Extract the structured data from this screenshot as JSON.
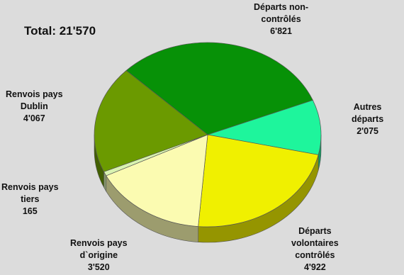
{
  "chart_data": {
    "type": "pie",
    "style": "3d",
    "title": "Total: 21'570",
    "slices": [
      {
        "name": "Autres\ndéparts",
        "value_label": "2'075",
        "value": 2075,
        "color": "#1ef59c"
      },
      {
        "name": "Départs\nvolontaires\ncontrôlés",
        "value_label": "4'922",
        "value": 4922,
        "color": "#f0f000"
      },
      {
        "name": "Renvois pays\nd`origine",
        "value_label": "3'520",
        "value": 3520,
        "color": "#fbfbb1"
      },
      {
        "name": "Renvois pays\ntiers",
        "value_label": "165",
        "value": 165,
        "color": "#d9f3b0"
      },
      {
        "name": "Renvois pays\nDublin",
        "value_label": "4'067",
        "value": 4067,
        "color": "#6b9a00"
      },
      {
        "name": "Départs non-\ncontrôlés",
        "value_label": "6'821",
        "value": 6821,
        "color": "#079107"
      }
    ]
  }
}
